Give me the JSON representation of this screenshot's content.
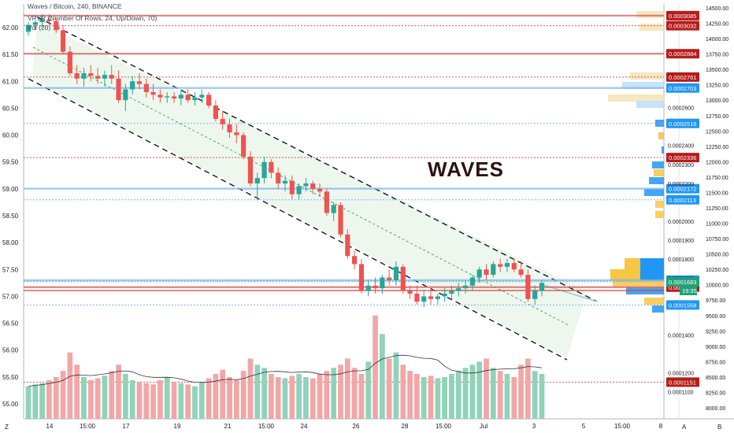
{
  "header": {
    "symbol_line": "Waves / Bitcoin, 240, BINANCE",
    "vpvr_line": "VPVR (Number Of Rows, 24, Up/Down, 70)",
    "vol_line": "Vol (20)"
  },
  "annotation": {
    "text": "WAVES"
  },
  "bottom_left_label": "Z",
  "bottom_right": {
    "a_label": "A",
    "b_label": "B"
  },
  "colors": {
    "up": "#26a69a",
    "down": "#ef5350",
    "vol_up": "#8fd3b9",
    "vol_down": "#f2a6a6",
    "channel_fill": "#e8f5e9",
    "price_badge": "#21a179",
    "red_badge": "#b71c1c",
    "blue_badge": "#2196f3"
  },
  "chart_data": {
    "type": "candlestick",
    "left_axis": {
      "ticks": [
        "62.00",
        "61.50",
        "61.00",
        "60.50",
        "60.00",
        "59.50",
        "59.00",
        "58.50",
        "58.00",
        "57.50",
        "57.00",
        "56.50",
        "56.00",
        "55.50",
        "55.00"
      ],
      "range": [
        54.85,
        62.3
      ]
    },
    "right_axis": {
      "range": [
        9.78e-05,
        0.000313
      ],
      "ticks": [
        "0.0002600",
        "0.0002400",
        "0.0002300",
        "0.0002200",
        "0.0002000",
        "0.0001900",
        "0.0001800",
        "0.0001700",
        "0.0001400",
        "0.0001200",
        "0.0001100"
      ]
    },
    "volume_axis": {
      "ticks": [
        "14500.00",
        "14250.00",
        "14000.00",
        "13750.00",
        "13500.00",
        "13250.00",
        "13000.00",
        "12750.00",
        "12500.00",
        "12250.00",
        "12000.00",
        "11750.00",
        "11500.00",
        "11250.00",
        "11000.00",
        "10750.00",
        "10500.00",
        "10250.00",
        "10000.00",
        "9750.00",
        "9500.00",
        "9250.00",
        "9000.00",
        "8750.00",
        "8500.00",
        "8250.00",
        "8000.00"
      ]
    },
    "x_ticks": [
      "14",
      "15:00",
      "17",
      "19",
      "21",
      "15:00",
      "24",
      "26",
      "28",
      "15:00",
      "Jul",
      "3",
      "5",
      "15:00",
      "8"
    ],
    "price_levels": [
      {
        "value": "0.0003085",
        "style": "red-solid"
      },
      {
        "value": "0.0003032",
        "style": "red-dotted"
      },
      {
        "value": "0.0002884",
        "style": "red-solid"
      },
      {
        "value": "0.0002761",
        "style": "red-dotted"
      },
      {
        "value": "0.0002703",
        "style": "blue-solid"
      },
      {
        "value": "0.0002516",
        "style": "blue-dotted"
      },
      {
        "value": "0.0002336",
        "style": "red-dotted"
      },
      {
        "value": "0.0002172",
        "style": "blue-solid"
      },
      {
        "value": "0.0002113",
        "style": "blue-dotted"
      },
      {
        "value": "0.0001689",
        "style": "blue-solid"
      },
      {
        "value": "0.0001683",
        "style": "blue-dotted"
      },
      {
        "value": "0.0001652",
        "style": "red-solid"
      },
      {
        "value": "0.0001558",
        "style": "blue-dotted"
      },
      {
        "value": "0.0001151",
        "style": "red-dotted"
      }
    ],
    "current_price": {
      "value": "0.0001683",
      "countdown": "19:35"
    },
    "candles": [
      [
        61.92,
        62.1,
        61.85,
        62.05
      ],
      [
        62.05,
        62.2,
        61.95,
        62.1
      ],
      [
        62.1,
        62.25,
        62.0,
        62.15
      ],
      [
        62.15,
        62.25,
        62.05,
        62.12
      ],
      [
        62.12,
        62.2,
        61.9,
        61.95
      ],
      [
        61.95,
        62.05,
        61.5,
        61.55
      ],
      [
        61.55,
        61.65,
        61.1,
        61.15
      ],
      [
        61.15,
        61.3,
        60.95,
        61.05
      ],
      [
        61.05,
        61.25,
        60.9,
        61.15
      ],
      [
        61.15,
        61.3,
        61.0,
        61.1
      ],
      [
        61.1,
        61.25,
        60.95,
        61.05
      ],
      [
        61.05,
        61.2,
        60.9,
        61.12
      ],
      [
        61.12,
        61.3,
        60.95,
        61.05
      ],
      [
        61.05,
        61.2,
        60.6,
        60.65
      ],
      [
        60.65,
        60.95,
        60.45,
        60.85
      ],
      [
        60.85,
        61.1,
        60.75,
        61.0
      ],
      [
        61.0,
        61.15,
        60.85,
        60.95
      ],
      [
        60.95,
        61.05,
        60.7,
        60.8
      ],
      [
        60.8,
        60.95,
        60.65,
        60.75
      ],
      [
        60.75,
        60.85,
        60.6,
        60.7
      ],
      [
        60.7,
        60.8,
        60.6,
        60.72
      ],
      [
        60.72,
        60.8,
        60.6,
        60.68
      ],
      [
        60.68,
        60.85,
        60.55,
        60.75
      ],
      [
        60.75,
        60.85,
        60.6,
        60.65
      ],
      [
        60.65,
        60.8,
        60.55,
        60.7
      ],
      [
        60.7,
        60.85,
        60.6,
        60.75
      ],
      [
        60.75,
        60.8,
        60.5,
        60.55
      ],
      [
        60.55,
        60.65,
        60.25,
        60.3
      ],
      [
        60.3,
        60.45,
        60.1,
        60.2
      ],
      [
        60.2,
        60.3,
        59.95,
        60.05
      ],
      [
        60.05,
        60.2,
        59.85,
        60.0
      ],
      [
        60.0,
        60.05,
        59.55,
        59.6
      ],
      [
        59.6,
        59.7,
        59.05,
        59.1
      ],
      [
        59.1,
        59.3,
        58.8,
        59.2
      ],
      [
        59.2,
        59.6,
        59.1,
        59.5
      ],
      [
        59.5,
        59.55,
        59.2,
        59.3
      ],
      [
        59.3,
        59.4,
        59.0,
        59.1
      ],
      [
        59.1,
        59.25,
        58.95,
        59.15
      ],
      [
        59.15,
        59.25,
        58.8,
        58.9
      ],
      [
        58.9,
        59.1,
        58.8,
        59.05
      ],
      [
        59.05,
        59.2,
        58.95,
        59.1
      ],
      [
        59.1,
        59.15,
        58.9,
        59.0
      ],
      [
        59.0,
        59.1,
        58.85,
        58.95
      ],
      [
        58.95,
        59.0,
        58.5,
        58.55
      ],
      [
        58.55,
        58.75,
        58.4,
        58.7
      ],
      [
        58.7,
        58.75,
        58.1,
        58.15
      ],
      [
        58.15,
        58.25,
        57.7,
        57.75
      ],
      [
        57.75,
        57.85,
        57.5,
        57.6
      ],
      [
        57.6,
        57.7,
        57.05,
        57.1
      ],
      [
        57.1,
        57.3,
        57.0,
        57.2
      ],
      [
        57.2,
        57.35,
        57.05,
        57.15
      ],
      [
        57.15,
        57.4,
        57.05,
        57.35
      ],
      [
        57.35,
        57.5,
        57.2,
        57.3
      ],
      [
        57.3,
        57.65,
        57.2,
        57.55
      ],
      [
        57.55,
        57.6,
        57.05,
        57.1
      ],
      [
        57.1,
        57.2,
        56.95,
        57.05
      ],
      [
        57.05,
        57.2,
        56.85,
        56.9
      ],
      [
        56.9,
        57.1,
        56.8,
        57.0
      ],
      [
        57.0,
        57.1,
        56.85,
        56.95
      ],
      [
        56.95,
        57.05,
        56.85,
        57.0
      ],
      [
        57.0,
        57.15,
        56.9,
        57.05
      ],
      [
        57.05,
        57.2,
        56.95,
        57.1
      ],
      [
        57.1,
        57.25,
        57.0,
        57.15
      ],
      [
        57.15,
        57.3,
        57.05,
        57.2
      ],
      [
        57.2,
        57.4,
        57.1,
        57.35
      ],
      [
        57.35,
        57.55,
        57.25,
        57.5
      ],
      [
        57.5,
        57.6,
        57.3,
        57.4
      ],
      [
        57.4,
        57.65,
        57.35,
        57.6
      ],
      [
        57.6,
        57.7,
        57.45,
        57.55
      ],
      [
        57.55,
        57.7,
        57.45,
        57.62
      ],
      [
        57.62,
        57.7,
        57.45,
        57.5
      ],
      [
        57.5,
        57.65,
        57.35,
        57.4
      ],
      [
        57.4,
        57.5,
        56.9,
        56.95
      ],
      [
        56.95,
        57.2,
        56.85,
        57.1
      ],
      [
        57.1,
        57.3,
        57.0,
        57.25
      ]
    ],
    "volumes": [
      8350,
      8380,
      8400,
      8450,
      8500,
      8600,
      8900,
      8700,
      8500,
      8450,
      8480,
      8520,
      8600,
      8700,
      8550,
      8450,
      8420,
      8400,
      8380,
      8450,
      8500,
      8420,
      8400,
      8380,
      8350,
      8420,
      8480,
      8550,
      8620,
      8500,
      8450,
      8600,
      8800,
      8700,
      8650,
      8550,
      8500,
      8480,
      8520,
      8550,
      8500,
      8480,
      8550,
      8600,
      8650,
      8700,
      8800,
      8650,
      8550,
      8750,
      9500,
      9200,
      8800,
      8900,
      8700,
      8600,
      8550,
      8500,
      8520,
      8480,
      8500,
      8550,
      8600,
      8650,
      8700,
      8750,
      8800,
      8650,
      8600,
      8550,
      8500,
      8700,
      8800,
      8600,
      8550
    ]
  }
}
